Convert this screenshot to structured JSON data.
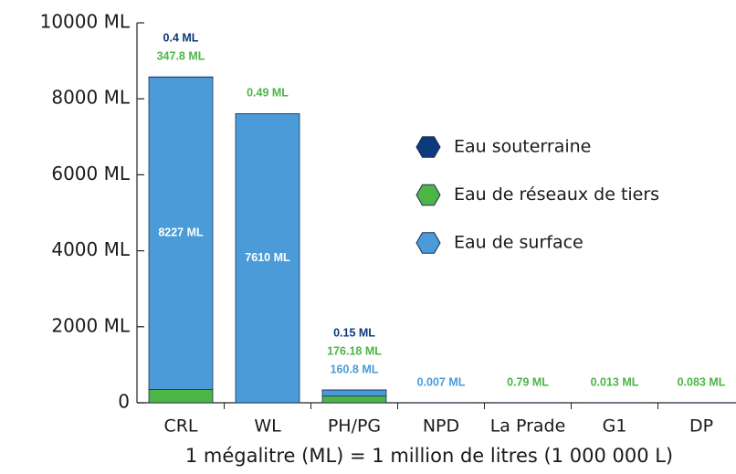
{
  "chart_data": {
    "type": "stacked_bar",
    "categories": [
      "CRL",
      "WL",
      "PH/PG",
      "NPD",
      "La Prade",
      "G1",
      "DP"
    ],
    "series": [
      {
        "name": "Eau souterraine",
        "color": "#0c3a7d",
        "values": [
          0.4,
          null,
          0.15,
          null,
          null,
          null,
          null
        ],
        "value_labels": [
          "0.4 ML",
          null,
          "0.15 ML",
          null,
          null,
          null,
          null
        ]
      },
      {
        "name": "Eau de réseaux de tiers",
        "color": "#4db546",
        "values": [
          347.8,
          0.49,
          176.18,
          null,
          0.79,
          0.013,
          0.083
        ],
        "value_labels": [
          "347.8 ML",
          "0.49 ML",
          "176.18 ML",
          null,
          "0.79 ML",
          "0.013 ML",
          "0.083 ML"
        ]
      },
      {
        "name": "Eau de surface",
        "color": "#4a9bd8",
        "values": [
          8227,
          7610,
          160.8,
          0.007,
          null,
          null,
          null
        ],
        "value_labels": [
          "8227 ML",
          "7610 ML",
          "160.8 ML",
          "0.007 ML",
          null,
          null,
          null
        ]
      }
    ],
    "ylim": [
      0,
      10000
    ],
    "yticks": [
      0,
      {
        "value": 2000,
        "label": "2000 ML"
      },
      {
        "value": 4000,
        "label": "4000 ML"
      },
      {
        "value": 6000,
        "label": "6000 ML"
      },
      {
        "value": 8000,
        "label": "8000 ML"
      },
      {
        "value": 10000,
        "label": "10000 ML"
      }
    ],
    "footnote": "1 mégalitre (ML) = 1 million de litres (1 000 000 L)"
  }
}
